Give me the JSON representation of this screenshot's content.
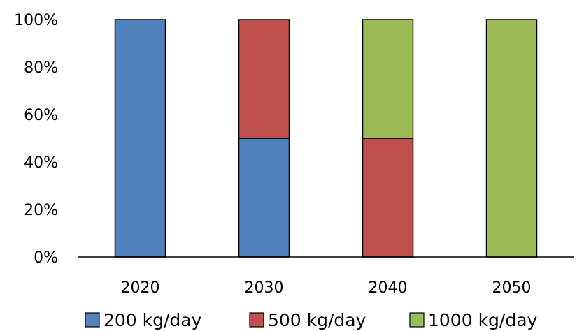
{
  "chart_data": {
    "type": "bar",
    "stacked": true,
    "categories": [
      "2020",
      "2030",
      "2040",
      "2050"
    ],
    "series": [
      {
        "name": "200 kg/day",
        "color": "#4f81bd",
        "values": [
          100,
          50,
          0,
          0
        ]
      },
      {
        "name": "500 kg/day",
        "color": "#c0504d",
        "values": [
          0,
          50,
          50,
          0
        ]
      },
      {
        "name": "1000 kg/day",
        "color": "#9bbb59",
        "values": [
          0,
          0,
          50,
          100
        ]
      }
    ],
    "ylim": [
      0,
      100
    ],
    "yticks": [
      "0%",
      "20%",
      "40%",
      "60%",
      "80%",
      "100%"
    ],
    "grid": false,
    "legend_position": "bottom"
  }
}
